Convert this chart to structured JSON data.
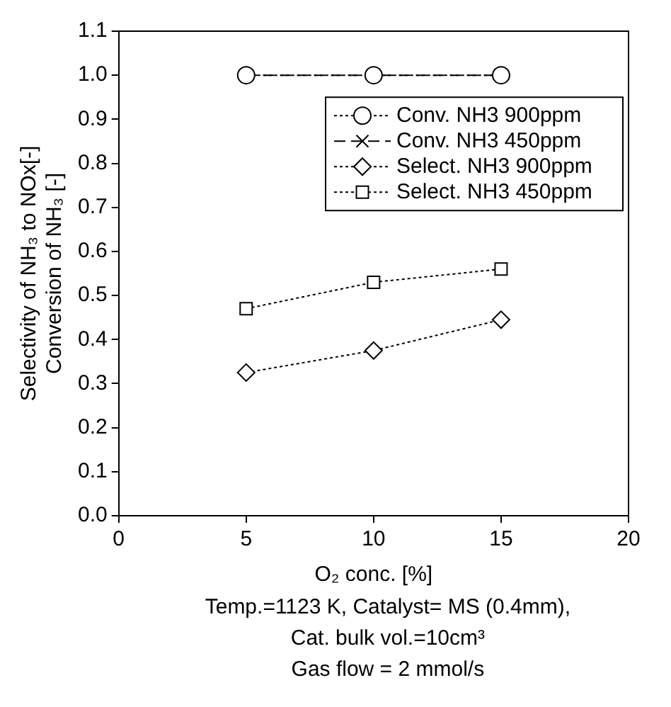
{
  "chart_data": {
    "type": "line",
    "x": [
      5,
      10,
      15
    ],
    "series": [
      {
        "name": "Conv. NH3 900ppm",
        "color": "#000000",
        "values": [
          1.0,
          1.0,
          1.0
        ],
        "marker": "circle",
        "line_style": "dotted"
      },
      {
        "name": "Conv. NH3 450ppm",
        "color": "#000000",
        "values": [
          1.0,
          1.0,
          1.0
        ],
        "marker": "cross",
        "line_style": "dashed"
      },
      {
        "name": "Select. NH3 900ppm",
        "color": "#000000",
        "values": [
          0.325,
          0.375,
          0.445
        ],
        "marker": "diamond",
        "line_style": "dotted"
      },
      {
        "name": "Select. NH3 450ppm",
        "color": "#000000",
        "values": [
          0.47,
          0.53,
          0.56
        ],
        "marker": "square",
        "line_style": "dotted"
      }
    ],
    "xlim": [
      0,
      20
    ],
    "xticks": [
      0,
      5,
      10,
      15,
      20
    ],
    "ylim": [
      0,
      1.1
    ],
    "yticks": [
      {
        "value": 0,
        "label": "0.0"
      },
      {
        "value": 0.1,
        "label": "0.1"
      },
      {
        "value": 0.2,
        "label": "0.2"
      },
      {
        "value": 0.3,
        "label": "0.3"
      },
      {
        "value": 0.4,
        "label": "0.4"
      },
      {
        "value": 0.5,
        "label": "0.5"
      },
      {
        "value": 0.6,
        "label": "0.6"
      },
      {
        "value": 0.7,
        "label": "0.7"
      },
      {
        "value": 0.8,
        "label": "0.8"
      },
      {
        "value": 0.9,
        "label": "0.9"
      },
      {
        "value": 1.0,
        "label": "1.0"
      },
      {
        "value": 1.1,
        "label": "1.1"
      }
    ],
    "xlabel": "O₂ conc. [%]",
    "ylabel": "Selectivity of NH₃ to NOx[-]\nConversion of NH₃ [-]",
    "annotations": [
      "Temp.=1123 K, Catalyst= MS (0.4mm),",
      "Cat. bulk vol.=10cm³",
      "Gas flow = 2 mmol/s"
    ],
    "grid": false,
    "legend": "top right"
  }
}
